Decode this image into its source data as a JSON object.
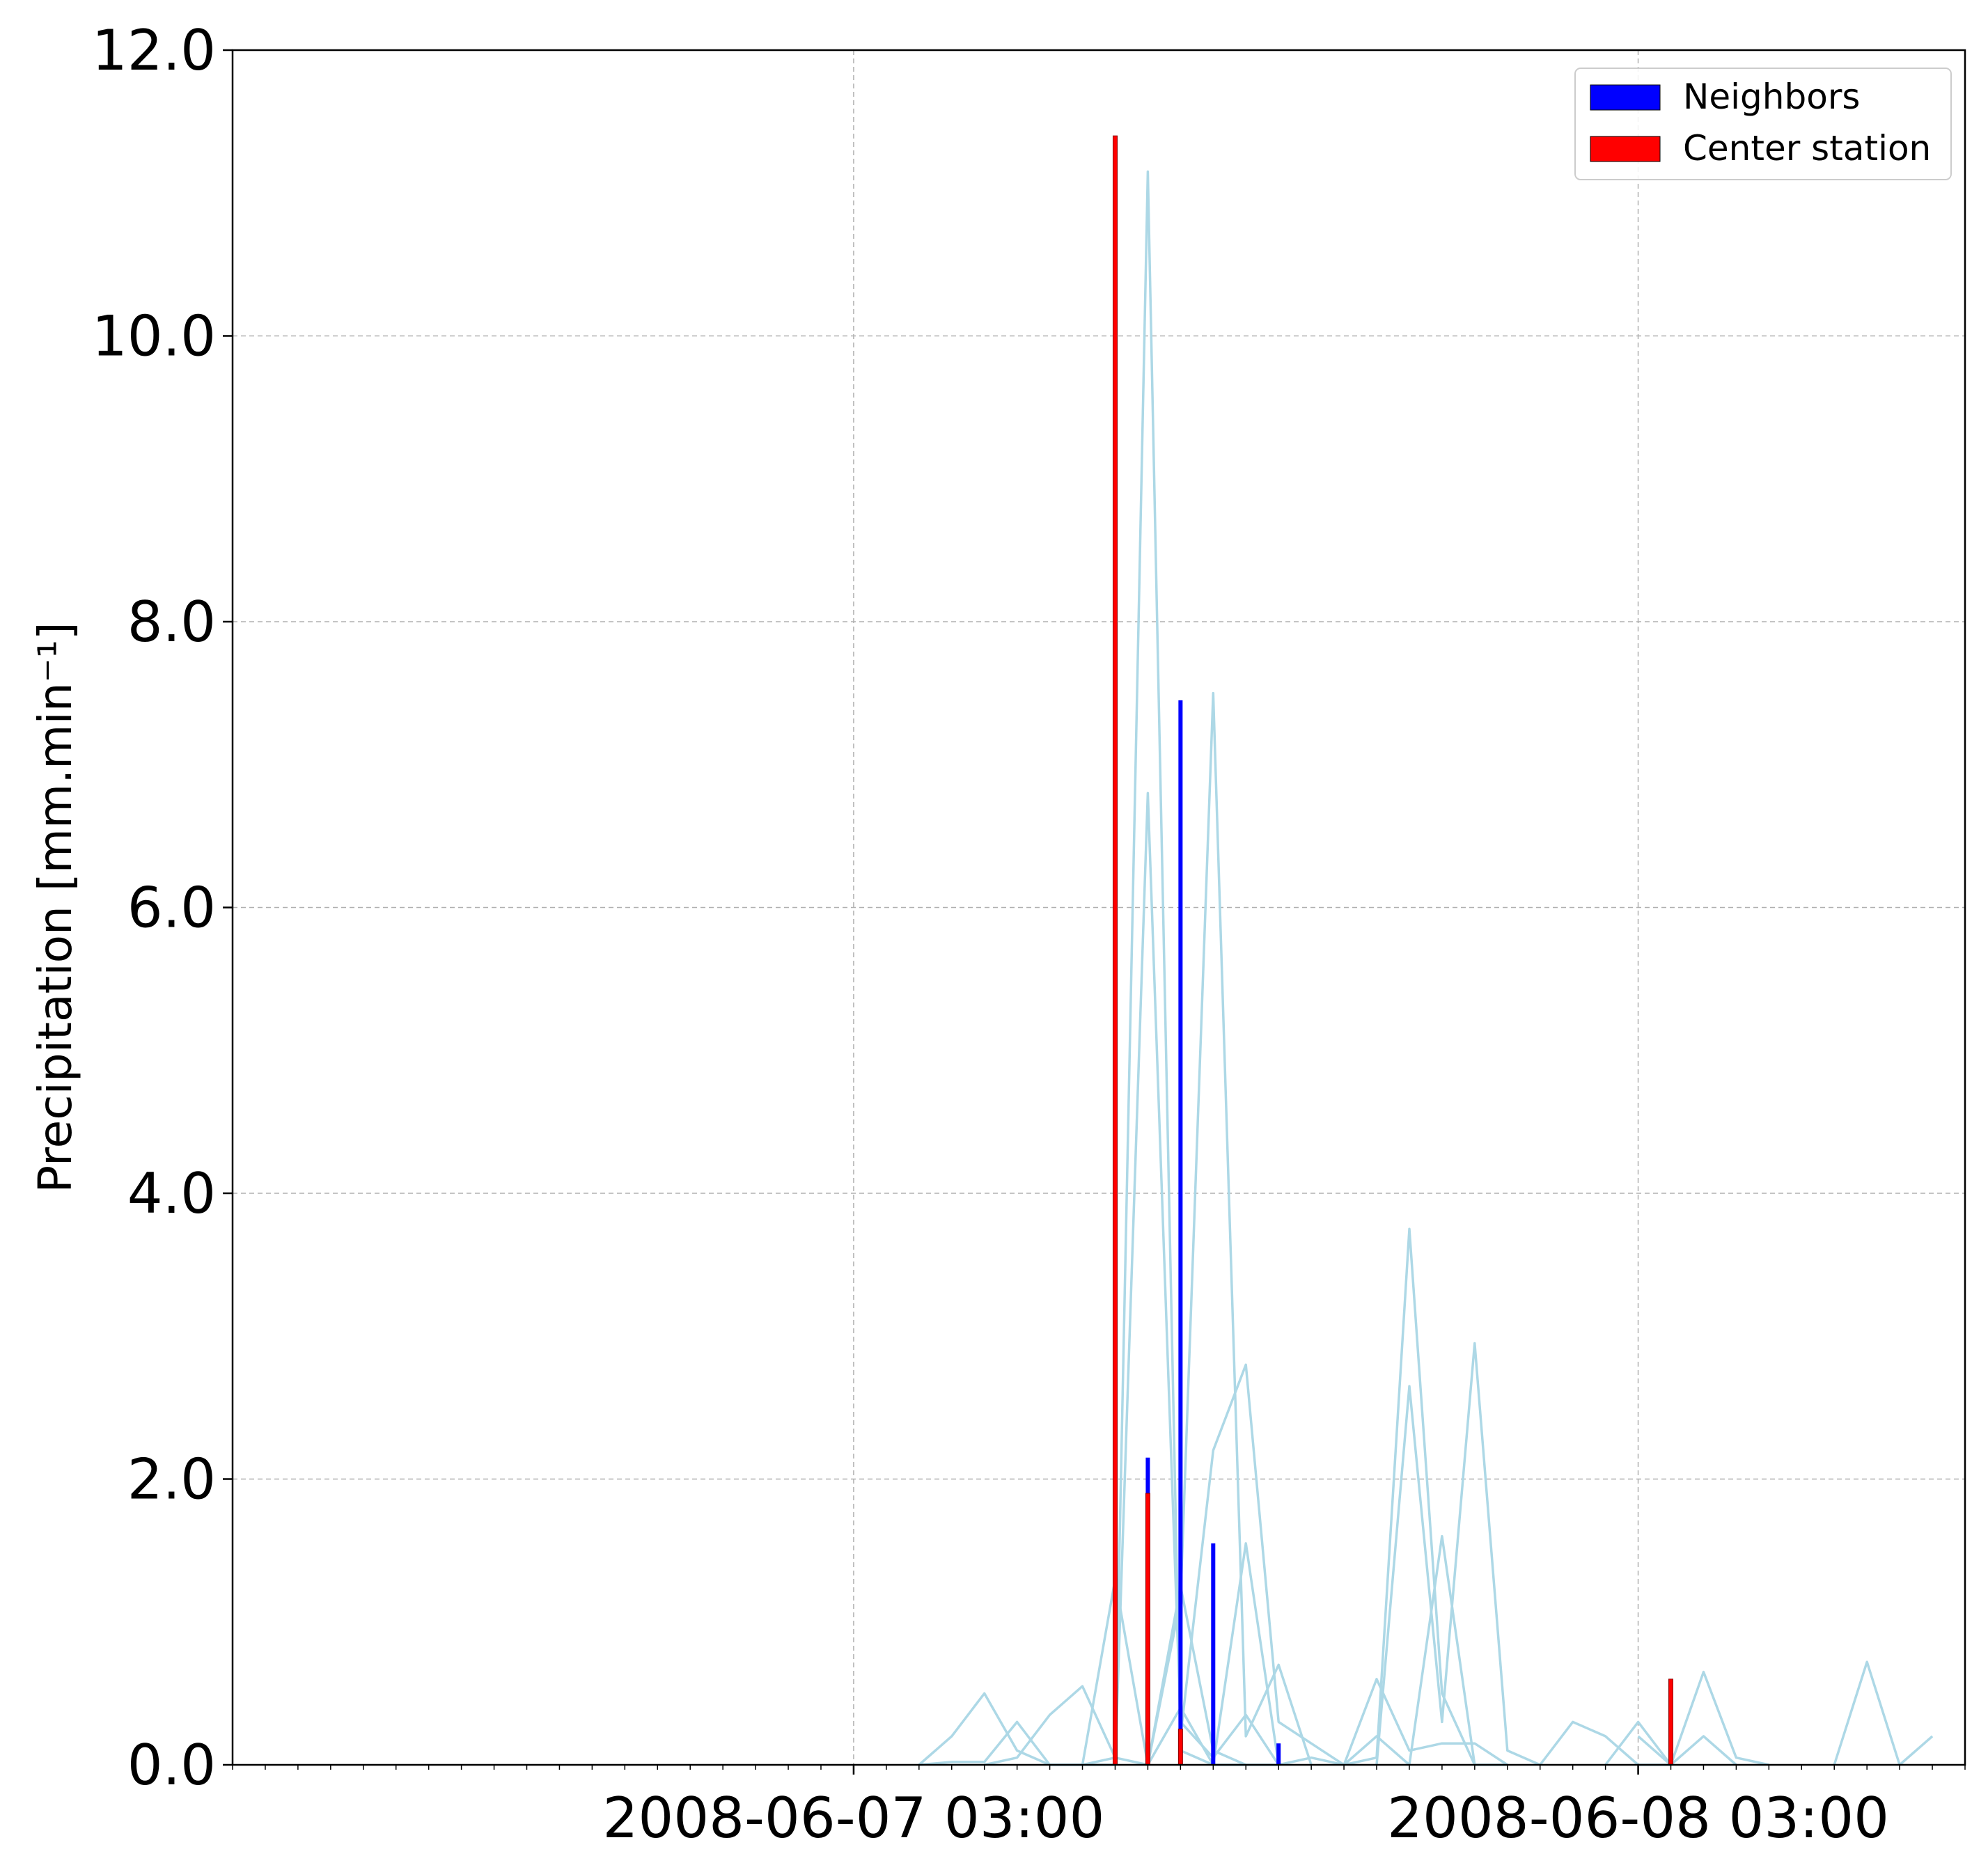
{
  "chart_data": {
    "type": "bar",
    "title": "",
    "xlabel": "",
    "ylabel": "Precipitation  [mm.min⁻¹]",
    "ylim": [
      0,
      12
    ],
    "xlim": [
      "2008-06-06 08:00",
      "2008-06-08 13:00"
    ],
    "x_ticks": [
      "2008-06-07 03:00",
      "2008-06-08 03:00"
    ],
    "y_ticks": [
      "0.0",
      "2.0",
      "4.0",
      "6.0",
      "8.0",
      "10.0",
      "12.0"
    ],
    "grid": true,
    "legend_position": "top-right",
    "colors": {
      "neighbors": "#0000ff",
      "center": "#ff0000",
      "neighbor_lines": "#add8e6",
      "grid": "#b0b0b0"
    },
    "series": [
      {
        "name": "Neighbors",
        "kind": "bar",
        "points": [
          {
            "x": "2008-06-07 11:00",
            "y": 0.02
          },
          {
            "x": "2008-06-07 12:00",
            "y": 2.15
          },
          {
            "x": "2008-06-07 13:00",
            "y": 7.45
          },
          {
            "x": "2008-06-07 14:00",
            "y": 1.55
          },
          {
            "x": "2008-06-07 16:00",
            "y": 0.15
          }
        ]
      },
      {
        "name": "Center station",
        "kind": "bar",
        "points": [
          {
            "x": "2008-06-07 11:00",
            "y": 11.4
          },
          {
            "x": "2008-06-07 12:00",
            "y": 1.9
          },
          {
            "x": "2008-06-07 13:00",
            "y": 0.25
          },
          {
            "x": "2008-06-08 04:00",
            "y": 0.6
          }
        ]
      },
      {
        "kind": "line",
        "points": [
          {
            "x": "2008-06-07 05:00",
            "y": 0.0
          },
          {
            "x": "2008-06-07 06:00",
            "y": 0.2
          },
          {
            "x": "2008-06-07 07:00",
            "y": 0.5
          },
          {
            "x": "2008-06-07 08:00",
            "y": 0.1
          },
          {
            "x": "2008-06-07 09:00",
            "y": 0.0
          },
          {
            "x": "2008-06-07 10:00",
            "y": 0.0
          },
          {
            "x": "2008-06-07 11:00",
            "y": 0.05
          },
          {
            "x": "2008-06-07 12:00",
            "y": 11.15
          },
          {
            "x": "2008-06-07 13:00",
            "y": 0.1
          },
          {
            "x": "2008-06-07 14:00",
            "y": 0.0
          },
          {
            "x": "2008-06-07 15:00",
            "y": 0.0
          }
        ]
      },
      {
        "kind": "line",
        "points": [
          {
            "x": "2008-06-07 05:00",
            "y": 0.0
          },
          {
            "x": "2008-06-07 06:00",
            "y": 0.02
          },
          {
            "x": "2008-06-07 07:00",
            "y": 0.02
          },
          {
            "x": "2008-06-07 08:00",
            "y": 0.3
          },
          {
            "x": "2008-06-07 09:00",
            "y": 0.0
          },
          {
            "x": "2008-06-07 10:00",
            "y": 0.0
          },
          {
            "x": "2008-06-07 11:00",
            "y": 0.0
          },
          {
            "x": "2008-06-07 12:00",
            "y": 6.8
          },
          {
            "x": "2008-06-07 13:00",
            "y": 0.3
          },
          {
            "x": "2008-06-07 14:00",
            "y": 0.05
          },
          {
            "x": "2008-06-07 15:00",
            "y": 0.35
          },
          {
            "x": "2008-06-07 16:00",
            "y": 0.0
          }
        ]
      },
      {
        "kind": "line",
        "points": [
          {
            "x": "2008-06-07 07:00",
            "y": 0.0
          },
          {
            "x": "2008-06-07 08:00",
            "y": 0.05
          },
          {
            "x": "2008-06-07 09:00",
            "y": 0.35
          },
          {
            "x": "2008-06-07 10:00",
            "y": 0.55
          },
          {
            "x": "2008-06-07 11:00",
            "y": 0.05
          },
          {
            "x": "2008-06-07 12:00",
            "y": 0.0
          },
          {
            "x": "2008-06-07 13:00",
            "y": 0.4
          },
          {
            "x": "2008-06-07 14:00",
            "y": 0.0
          }
        ]
      },
      {
        "kind": "line",
        "points": [
          {
            "x": "2008-06-07 10:00",
            "y": 0.0
          },
          {
            "x": "2008-06-07 11:00",
            "y": 1.3
          },
          {
            "x": "2008-06-07 12:00",
            "y": 0.0
          },
          {
            "x": "2008-06-07 13:00",
            "y": 1.25
          },
          {
            "x": "2008-06-07 14:00",
            "y": 0.1
          },
          {
            "x": "2008-06-07 15:00",
            "y": 0.0
          },
          {
            "x": "2008-06-07 16:00",
            "y": 0.0
          }
        ]
      },
      {
        "kind": "line",
        "points": [
          {
            "x": "2008-06-07 12:00",
            "y": 0.0
          },
          {
            "x": "2008-06-07 13:00",
            "y": 1.15
          },
          {
            "x": "2008-06-07 14:00",
            "y": 7.5
          },
          {
            "x": "2008-06-07 15:00",
            "y": 0.2
          },
          {
            "x": "2008-06-07 16:00",
            "y": 0.7
          },
          {
            "x": "2008-06-07 17:00",
            "y": 0.0
          }
        ]
      },
      {
        "kind": "line",
        "points": [
          {
            "x": "2008-06-07 13:00",
            "y": 0.2
          },
          {
            "x": "2008-06-07 14:00",
            "y": 2.2
          },
          {
            "x": "2008-06-07 15:00",
            "y": 2.8
          },
          {
            "x": "2008-06-07 16:00",
            "y": 0.3
          },
          {
            "x": "2008-06-07 17:00",
            "y": 0.15
          },
          {
            "x": "2008-06-07 18:00",
            "y": 0.0
          }
        ]
      },
      {
        "kind": "line",
        "points": [
          {
            "x": "2008-06-07 14:00",
            "y": 0.0
          },
          {
            "x": "2008-06-07 15:00",
            "y": 1.55
          },
          {
            "x": "2008-06-07 16:00",
            "y": 0.0
          },
          {
            "x": "2008-06-07 17:00",
            "y": 0.05
          },
          {
            "x": "2008-06-07 18:00",
            "y": 0.0
          },
          {
            "x": "2008-06-07 19:00",
            "y": 0.6
          },
          {
            "x": "2008-06-07 20:00",
            "y": 0.1
          },
          {
            "x": "2008-06-07 21:00",
            "y": 0.15
          },
          {
            "x": "2008-06-07 22:00",
            "y": 0.15
          },
          {
            "x": "2008-06-07 23:00",
            "y": 0.0
          }
        ]
      },
      {
        "kind": "line",
        "points": [
          {
            "x": "2008-06-07 18:00",
            "y": 0.0
          },
          {
            "x": "2008-06-07 19:00",
            "y": 0.05
          },
          {
            "x": "2008-06-07 20:00",
            "y": 3.75
          },
          {
            "x": "2008-06-07 21:00",
            "y": 0.5
          },
          {
            "x": "2008-06-07 22:00",
            "y": 0.0
          },
          {
            "x": "2008-06-07 23:00",
            "y": 0.0
          }
        ]
      },
      {
        "kind": "line",
        "points": [
          {
            "x": "2008-06-07 18:00",
            "y": 0.0
          },
          {
            "x": "2008-06-07 19:00",
            "y": 0.2
          },
          {
            "x": "2008-06-07 20:00",
            "y": 0.0
          },
          {
            "x": "2008-06-07 21:00",
            "y": 1.6
          },
          {
            "x": "2008-06-07 22:00",
            "y": 0.0
          }
        ]
      },
      {
        "kind": "line",
        "points": [
          {
            "x": "2008-06-07 19:00",
            "y": 0.0
          },
          {
            "x": "2008-06-07 20:00",
            "y": 2.65
          },
          {
            "x": "2008-06-07 21:00",
            "y": 0.3
          },
          {
            "x": "2008-06-07 22:00",
            "y": 2.95
          },
          {
            "x": "2008-06-07 23:00",
            "y": 0.1
          },
          {
            "x": "2008-06-08 00:00",
            "y": 0.0
          }
        ]
      },
      {
        "kind": "line",
        "points": [
          {
            "x": "2008-06-08 00:00",
            "y": 0.0
          },
          {
            "x": "2008-06-08 01:00",
            "y": 0.3
          },
          {
            "x": "2008-06-08 02:00",
            "y": 0.2
          },
          {
            "x": "2008-06-08 03:00",
            "y": 0.0
          },
          {
            "x": "2008-06-08 04:00",
            "y": 0.0
          }
        ]
      },
      {
        "kind": "line",
        "points": [
          {
            "x": "2008-06-08 02:00",
            "y": 0.0
          },
          {
            "x": "2008-06-08 03:00",
            "y": 0.3
          },
          {
            "x": "2008-06-08 04:00",
            "y": 0.0
          },
          {
            "x": "2008-06-08 05:00",
            "y": 0.65
          },
          {
            "x": "2008-06-08 06:00",
            "y": 0.05
          },
          {
            "x": "2008-06-08 07:00",
            "y": 0.0
          }
        ]
      },
      {
        "kind": "line",
        "points": [
          {
            "x": "2008-06-08 03:00",
            "y": 0.2
          },
          {
            "x": "2008-06-08 04:00",
            "y": 0.0
          },
          {
            "x": "2008-06-08 05:00",
            "y": 0.2
          },
          {
            "x": "2008-06-08 06:00",
            "y": 0.0
          }
        ]
      },
      {
        "kind": "line",
        "points": [
          {
            "x": "2008-06-08 09:00",
            "y": 0.0
          },
          {
            "x": "2008-06-08 10:00",
            "y": 0.72
          },
          {
            "x": "2008-06-08 11:00",
            "y": 0.0
          },
          {
            "x": "2008-06-08 12:00",
            "y": 0.2
          }
        ]
      }
    ]
  }
}
